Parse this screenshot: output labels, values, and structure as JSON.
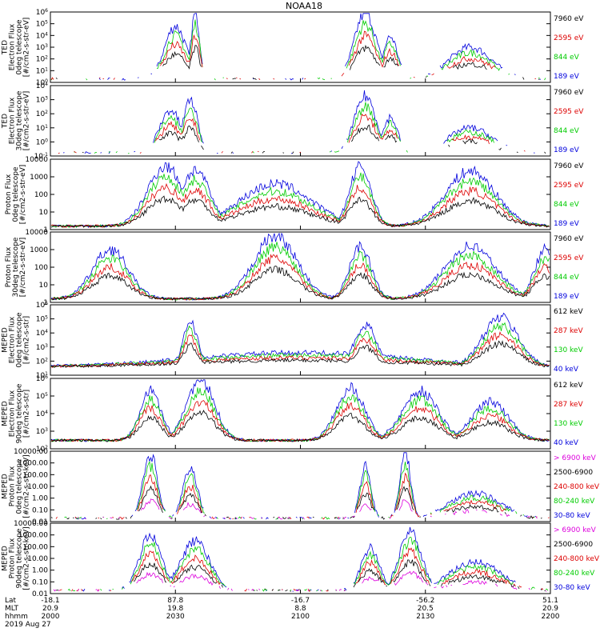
{
  "chart_data": {
    "type": "line",
    "title": "NOAA18",
    "date": "2019 Aug 27",
    "footer": {
      "row_labels": [
        "Lat",
        "MLT",
        "hhmm"
      ],
      "columns": [
        {
          "lat": "-18.1",
          "mlt": "20.9",
          "hhmm": "2000"
        },
        {
          "lat": "87.8",
          "mlt": "19.8",
          "hhmm": "2030"
        },
        {
          "lat": "-16.7",
          "mlt": "8.8",
          "hhmm": "2100"
        },
        {
          "lat": "-56.2",
          "mlt": "20.5",
          "hhmm": "2130"
        },
        {
          "lat": "51.1",
          "mlt": "20.9",
          "hhmm": "2200"
        }
      ]
    },
    "panels": [
      {
        "ylabel": [
          "TED",
          "Electron Flux",
          "0deg telescope",
          "[#/cm2-s-str-eV]"
        ],
        "yscale": "log",
        "ytick_labels": [
          "10^6",
          "10^5",
          "10^4",
          "10^3",
          "10^2",
          "10^1",
          "10^0"
        ],
        "legend": [
          {
            "label": "7960 eV",
            "color": "#000000"
          },
          {
            "label": "2595 eV",
            "color": "#dd0000"
          },
          {
            "label": "844 eV",
            "color": "#00cc00"
          },
          {
            "label": "189 eV",
            "color": "#0000dd"
          }
        ]
      },
      {
        "ylabel": [
          "TED",
          "Electron Flux",
          "30deg telescope",
          "[#/cm2-s-str-eV]"
        ],
        "yscale": "log",
        "ytick_labels": [
          "10^4",
          "10^3",
          "10^2",
          "10^1",
          "10^0",
          "10^-1"
        ],
        "legend": [
          {
            "label": "7960 eV",
            "color": "#000000"
          },
          {
            "label": "2595 eV",
            "color": "#dd0000"
          },
          {
            "label": "844 eV",
            "color": "#00cc00"
          },
          {
            "label": "189 eV",
            "color": "#0000dd"
          }
        ]
      },
      {
        "ylabel": [
          "Proton Flux",
          "0deg telescope",
          "[#/cm2-s-str-eV]"
        ],
        "yscale": "log",
        "ytick_labels": [
          "10000",
          "1000",
          "100",
          "10",
          "1"
        ],
        "legend": [
          {
            "label": "7960 eV",
            "color": "#000000"
          },
          {
            "label": "2595 eV",
            "color": "#dd0000"
          },
          {
            "label": "844 eV",
            "color": "#00cc00"
          },
          {
            "label": "189 eV",
            "color": "#0000dd"
          }
        ]
      },
      {
        "ylabel": [
          "Proton Flux",
          "30deg telescope",
          "[#/cm2-s-str-eV]"
        ],
        "yscale": "log",
        "ytick_labels": [
          "10000",
          "1000",
          "100",
          "10",
          "1"
        ],
        "legend": [
          {
            "label": "7960 eV",
            "color": "#000000"
          },
          {
            "label": "2595 eV",
            "color": "#dd0000"
          },
          {
            "label": "844 eV",
            "color": "#00cc00"
          },
          {
            "label": "189 eV",
            "color": "#0000dd"
          }
        ]
      },
      {
        "ylabel": [
          "MEPED",
          "Electron Flux",
          "0deg telescope",
          "[#/cm2-s-str]"
        ],
        "yscale": "log",
        "ytick_labels": [
          "10^6",
          "10^5",
          "10^4",
          "10^3",
          "10^2",
          "10^1"
        ],
        "legend": [
          {
            "label": "612 keV",
            "color": "#000000"
          },
          {
            "label": "287 keV",
            "color": "#dd0000"
          },
          {
            "label": "130 keV",
            "color": "#00cc00"
          },
          {
            "label": "40 keV",
            "color": "#0000dd"
          }
        ]
      },
      {
        "ylabel": [
          "MEPED",
          "Electron Flux",
          "90deg telescope",
          "[#/cm2-s-str]"
        ],
        "yscale": "log",
        "ytick_labels": [
          "10^6",
          "10^5",
          "10^4",
          "10^3",
          "10^2"
        ],
        "legend": [
          {
            "label": "612 keV",
            "color": "#000000"
          },
          {
            "label": "287 keV",
            "color": "#dd0000"
          },
          {
            "label": "130 keV",
            "color": "#00cc00"
          },
          {
            "label": "40 keV",
            "color": "#0000dd"
          }
        ]
      },
      {
        "ylabel": [
          "MEPED",
          "Proton Flux",
          "0deg telescope",
          "[#/cm2-s-str-keV]"
        ],
        "yscale": "log",
        "ytick_labels": [
          "10000.00",
          "1000.00",
          "100.00",
          "10.00",
          "1.00",
          "0.10",
          "0.01"
        ],
        "legend": [
          {
            "label": "> 6900 keV",
            "color": "#dd00dd"
          },
          {
            "label": "2500-6900",
            "color": "#000000"
          },
          {
            "label": "240-800 keV",
            "color": "#dd0000"
          },
          {
            "label": "80-240 keV",
            "color": "#00cc00"
          },
          {
            "label": "30-80 keV",
            "color": "#0000dd"
          }
        ]
      },
      {
        "ylabel": [
          "MEPED",
          "Proton Flux",
          "90deg telescope",
          "[#/cm2-s-str-keV]"
        ],
        "yscale": "log",
        "ytick_labels": [
          "10000.00",
          "1000.00",
          "100.00",
          "10.00",
          "1.00",
          "0.10",
          "0.01"
        ],
        "legend": [
          {
            "label": "> 6900 keV",
            "color": "#dd00dd"
          },
          {
            "label": "2500-6900",
            "color": "#000000"
          },
          {
            "label": "240-800 keV",
            "color": "#dd0000"
          },
          {
            "label": "80-240 keV",
            "color": "#00cc00"
          },
          {
            "label": "30-80 keV",
            "color": "#0000dd"
          }
        ]
      }
    ]
  }
}
